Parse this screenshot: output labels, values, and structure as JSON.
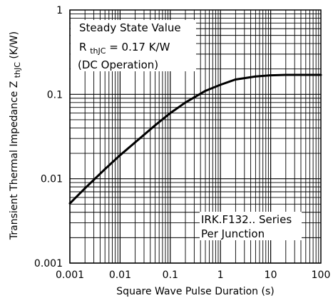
{
  "chart_data": {
    "type": "line",
    "x_scale": "log",
    "y_scale": "log",
    "xlim": [
      0.001,
      100
    ],
    "ylim": [
      0.001,
      1
    ],
    "grid": true,
    "xlabel": "Square Wave Pulse Duration (s)",
    "ylabel": {
      "main": "Transient Thermal Impedance Z",
      "subscript": "thJC",
      "unit": "(K/W)"
    },
    "x_ticks": [
      "0.001",
      "0.01",
      "0.1",
      "1",
      "10",
      "100"
    ],
    "y_ticks": [
      "0.001",
      "0.01",
      "0.1",
      "1"
    ],
    "series": [
      {
        "x": [
          0.001,
          0.002,
          0.005,
          0.01,
          0.02,
          0.05,
          0.1,
          0.2,
          0.5,
          1,
          2,
          5,
          10,
          20,
          50,
          100
        ],
        "y": [
          0.0051,
          0.0077,
          0.013,
          0.019,
          0.027,
          0.043,
          0.06,
          0.08,
          0.11,
          0.13,
          0.15,
          0.163,
          0.168,
          0.17,
          0.17,
          0.17
        ]
      }
    ],
    "annotations": {
      "steady_state": {
        "line1": "Steady State Value",
        "line2_prefix": "R",
        "line2_sub": "thJC",
        "line2_rest": " = 0.17 K/W",
        "line3": "(DC Operation)"
      },
      "series_note": {
        "line1": "IRK.F132.. Series",
        "line2": "Per Junction"
      }
    }
  }
}
